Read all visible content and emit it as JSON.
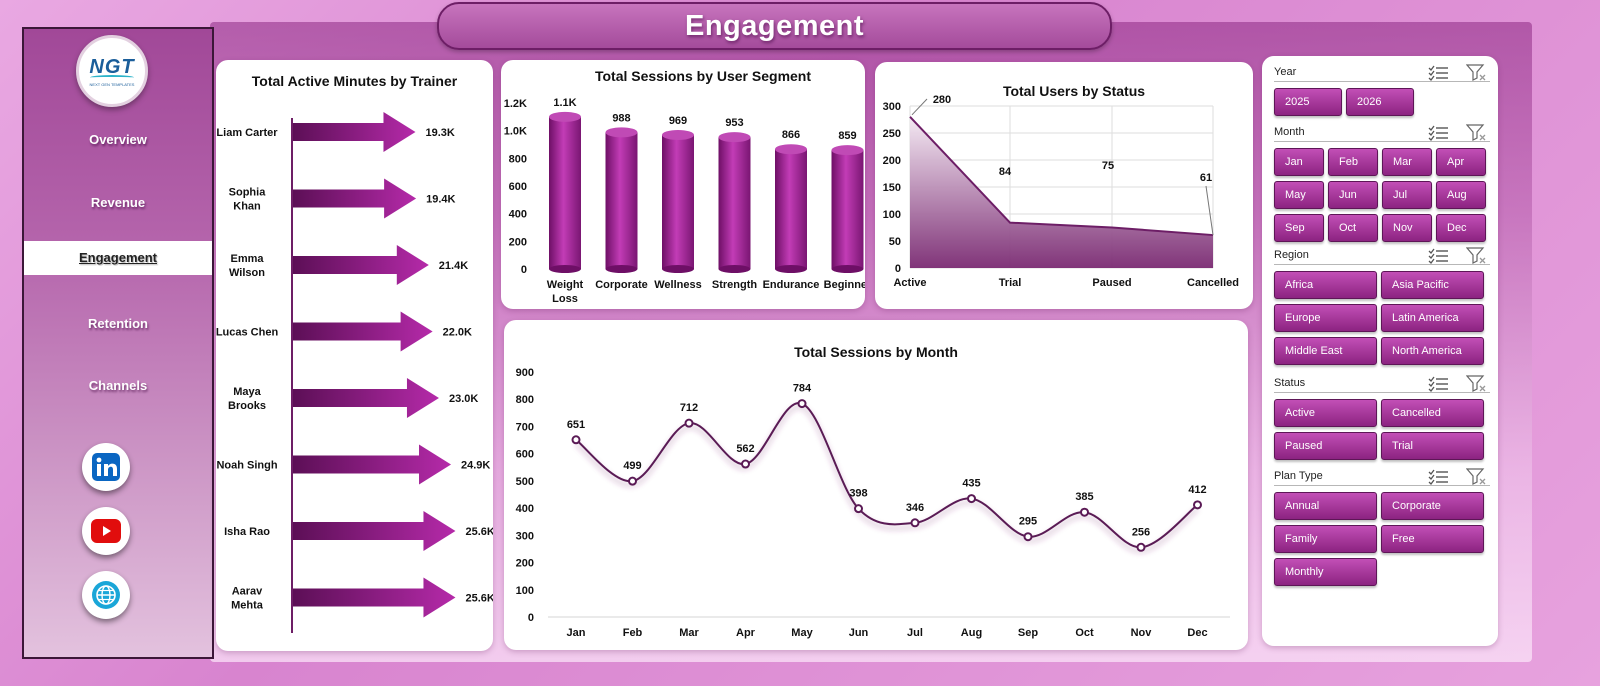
{
  "header": {
    "title": "Engagement"
  },
  "sidebar": {
    "logo_text": "NGT",
    "logo_sub": "NEXT GEN TEMPLATES",
    "items": [
      {
        "label": "Overview"
      },
      {
        "label": "Revenue"
      },
      {
        "label": "Engagement",
        "active": true
      },
      {
        "label": "Retention"
      },
      {
        "label": "Channels"
      }
    ],
    "social": [
      "linkedin-icon",
      "youtube-icon",
      "globe-icon"
    ]
  },
  "colors": {
    "accent": "#9b2d93",
    "accent_dark": "#6d1e66",
    "line": "#5a1a55"
  },
  "chart_data": [
    {
      "type": "bar",
      "title": "Total Active Minutes  by Trainer",
      "orientation": "horizontal",
      "categories": [
        "Liam Carter",
        "Sophia Khan",
        "Emma Wilson",
        "Lucas Chen",
        "Maya Brooks",
        "Noah Singh",
        "Isha Rao",
        "Aarav Mehta"
      ],
      "category_lines": [
        [
          "Liam Carter"
        ],
        [
          "Sophia",
          "Khan"
        ],
        [
          "Emma",
          "Wilson"
        ],
        [
          "Lucas Chen"
        ],
        [
          "Maya",
          "Brooks"
        ],
        [
          "Noah Singh"
        ],
        [
          "Isha Rao"
        ],
        [
          "Aarav",
          "Mehta"
        ]
      ],
      "values": [
        19300,
        19400,
        21400,
        22000,
        23000,
        24900,
        25600,
        25600
      ],
      "labels": [
        "19.3K",
        "19.4K",
        "21.4K",
        "22.0K",
        "23.0K",
        "24.9K",
        "25.6K",
        "25.6K"
      ]
    },
    {
      "type": "bar",
      "title": "Total Sessions by User Segment",
      "categories": [
        "Weight Loss",
        "Corporate",
        "Wellness",
        "Strength",
        "Endurance",
        "Beginner"
      ],
      "category_lines": [
        [
          "Weight",
          "Loss"
        ],
        [
          "Corporate"
        ],
        [
          "Wellness"
        ],
        [
          "Strength"
        ],
        [
          "Endurance"
        ],
        [
          "Beginner"
        ]
      ],
      "values": [
        1100,
        988,
        969,
        953,
        866,
        859
      ],
      "labels": [
        "1.1K",
        "988",
        "969",
        "953",
        "866",
        "859"
      ],
      "yticks": [
        "0",
        "200",
        "400",
        "600",
        "800",
        "1.0K",
        "1.2K"
      ],
      "ylim": [
        0,
        1200
      ]
    },
    {
      "type": "area",
      "title": "Total Users by Status",
      "categories": [
        "Active",
        "Trial",
        "Paused",
        "Cancelled"
      ],
      "values": [
        280,
        84,
        75,
        61
      ],
      "yticks": [
        "0",
        "50",
        "100",
        "150",
        "200",
        "250",
        "300"
      ],
      "ylim": [
        0,
        300
      ],
      "grid": true
    },
    {
      "type": "line",
      "title": "Total Sessions by Month",
      "categories": [
        "Jan",
        "Feb",
        "Mar",
        "Apr",
        "May",
        "Jun",
        "Jul",
        "Aug",
        "Sep",
        "Oct",
        "Nov",
        "Dec"
      ],
      "values": [
        651,
        499,
        712,
        562,
        784,
        398,
        346,
        435,
        295,
        385,
        256,
        412
      ],
      "yticks": [
        "0",
        "100",
        "200",
        "300",
        "400",
        "500",
        "600",
        "700",
        "800",
        "900"
      ],
      "ylim": [
        0,
        900
      ]
    }
  ],
  "filters": {
    "year": {
      "title": "Year",
      "options": [
        "2025",
        "2026"
      ]
    },
    "month": {
      "title": "Month",
      "options": [
        "Jan",
        "Feb",
        "Mar",
        "Apr",
        "May",
        "Jun",
        "Jul",
        "Aug",
        "Sep",
        "Oct",
        "Nov",
        "Dec"
      ]
    },
    "region": {
      "title": "Region",
      "options": [
        "Africa",
        "Asia Pacific",
        "Europe",
        "Latin America",
        "Middle East",
        "North America"
      ]
    },
    "status": {
      "title": "Status",
      "options": [
        "Active",
        "Cancelled",
        "Paused",
        "Trial"
      ]
    },
    "plan": {
      "title": "Plan Type",
      "options": [
        "Annual",
        "Corporate",
        "Family",
        "Free",
        "Monthly"
      ]
    }
  }
}
